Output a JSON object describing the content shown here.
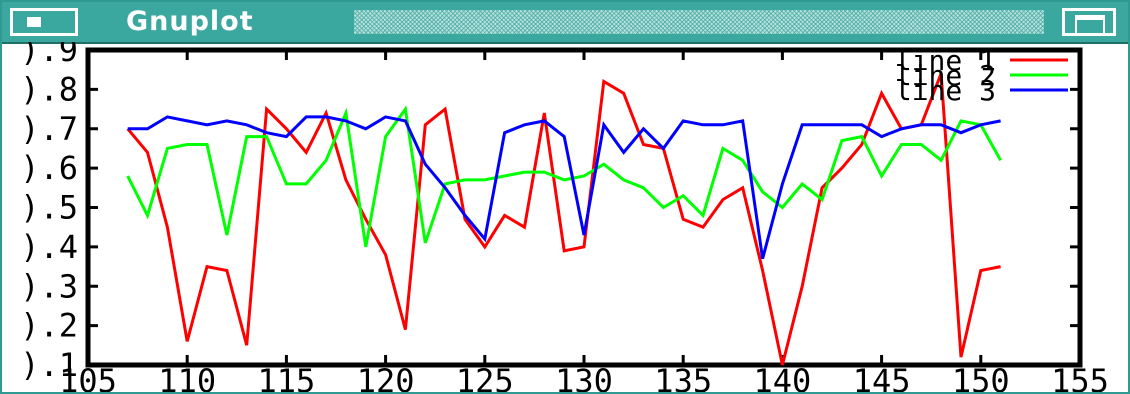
{
  "window": {
    "title": "Gnuplot"
  },
  "icons": {
    "system_menu": "system-menu-icon",
    "maximize": "maximize-icon"
  },
  "chart_data": {
    "type": "line",
    "title": "",
    "xlabel": "",
    "ylabel": "",
    "xlim": [
      105,
      155
    ],
    "ylim": [
      0.1,
      0.9
    ],
    "grid": false,
    "legend": "top-right",
    "x_ticks": [
      105,
      110,
      115,
      120,
      125,
      130,
      135,
      140,
      145,
      150,
      155
    ],
    "x_tick_labels": [
      "105",
      "110",
      "115",
      "120",
      "125",
      "130",
      "135",
      "140",
      "145",
      "150",
      "155"
    ],
    "y_ticks": [
      0.1,
      0.2,
      0.3,
      0.4,
      0.5,
      0.6,
      0.7,
      0.8,
      0.9
    ],
    "y_tick_labels": [
      ").1",
      ").2",
      ").3",
      ").4",
      ").5",
      ").6",
      ").7",
      ").8",
      ").9"
    ],
    "x": [
      107,
      108,
      109,
      110,
      111,
      112,
      113,
      114,
      115,
      116,
      117,
      118,
      119,
      120,
      121,
      122,
      123,
      124,
      125,
      126,
      127,
      128,
      129,
      130,
      131,
      132,
      133,
      134,
      135,
      136,
      137,
      138,
      139,
      140,
      141,
      142,
      143,
      144,
      145,
      146,
      147,
      148,
      149,
      150,
      151
    ],
    "series": [
      {
        "name": "line 1",
        "color": "#ff0000",
        "values": [
          0.7,
          0.64,
          0.45,
          0.16,
          0.35,
          0.34,
          0.15,
          0.75,
          0.7,
          0.64,
          0.74,
          0.57,
          0.47,
          0.38,
          0.19,
          0.71,
          0.75,
          0.47,
          0.4,
          0.48,
          0.45,
          0.74,
          0.39,
          0.4,
          0.82,
          0.79,
          0.66,
          0.65,
          0.47,
          0.45,
          0.52,
          0.55,
          0.34,
          0.1,
          0.3,
          0.55,
          0.6,
          0.66,
          0.79,
          0.7,
          0.71,
          0.84,
          0.12,
          0.34,
          0.35
        ]
      },
      {
        "name": "line 2",
        "color": "#00ff00",
        "values": [
          0.58,
          0.48,
          0.65,
          0.66,
          0.66,
          0.43,
          0.68,
          0.68,
          0.56,
          0.56,
          0.62,
          0.74,
          0.4,
          0.68,
          0.75,
          0.41,
          0.56,
          0.57,
          0.57,
          0.58,
          0.59,
          0.59,
          0.57,
          0.58,
          0.61,
          0.57,
          0.55,
          0.5,
          0.53,
          0.48,
          0.65,
          0.62,
          0.54,
          0.5,
          0.56,
          0.52,
          0.67,
          0.68,
          0.58,
          0.66,
          0.66,
          0.62,
          0.72,
          0.71,
          0.62
        ]
      },
      {
        "name": "line 3",
        "color": "#0000ff",
        "values": [
          0.7,
          0.7,
          0.73,
          0.72,
          0.71,
          0.72,
          0.71,
          0.69,
          0.68,
          0.73,
          0.73,
          0.72,
          0.7,
          0.73,
          0.72,
          0.61,
          0.55,
          0.48,
          0.42,
          0.69,
          0.71,
          0.72,
          0.68,
          0.43,
          0.71,
          0.64,
          0.7,
          0.65,
          0.72,
          0.71,
          0.71,
          0.72,
          0.37,
          0.56,
          0.71,
          0.71,
          0.71,
          0.71,
          0.68,
          0.7,
          0.71,
          0.71,
          0.69,
          0.71,
          0.72
        ]
      }
    ]
  }
}
